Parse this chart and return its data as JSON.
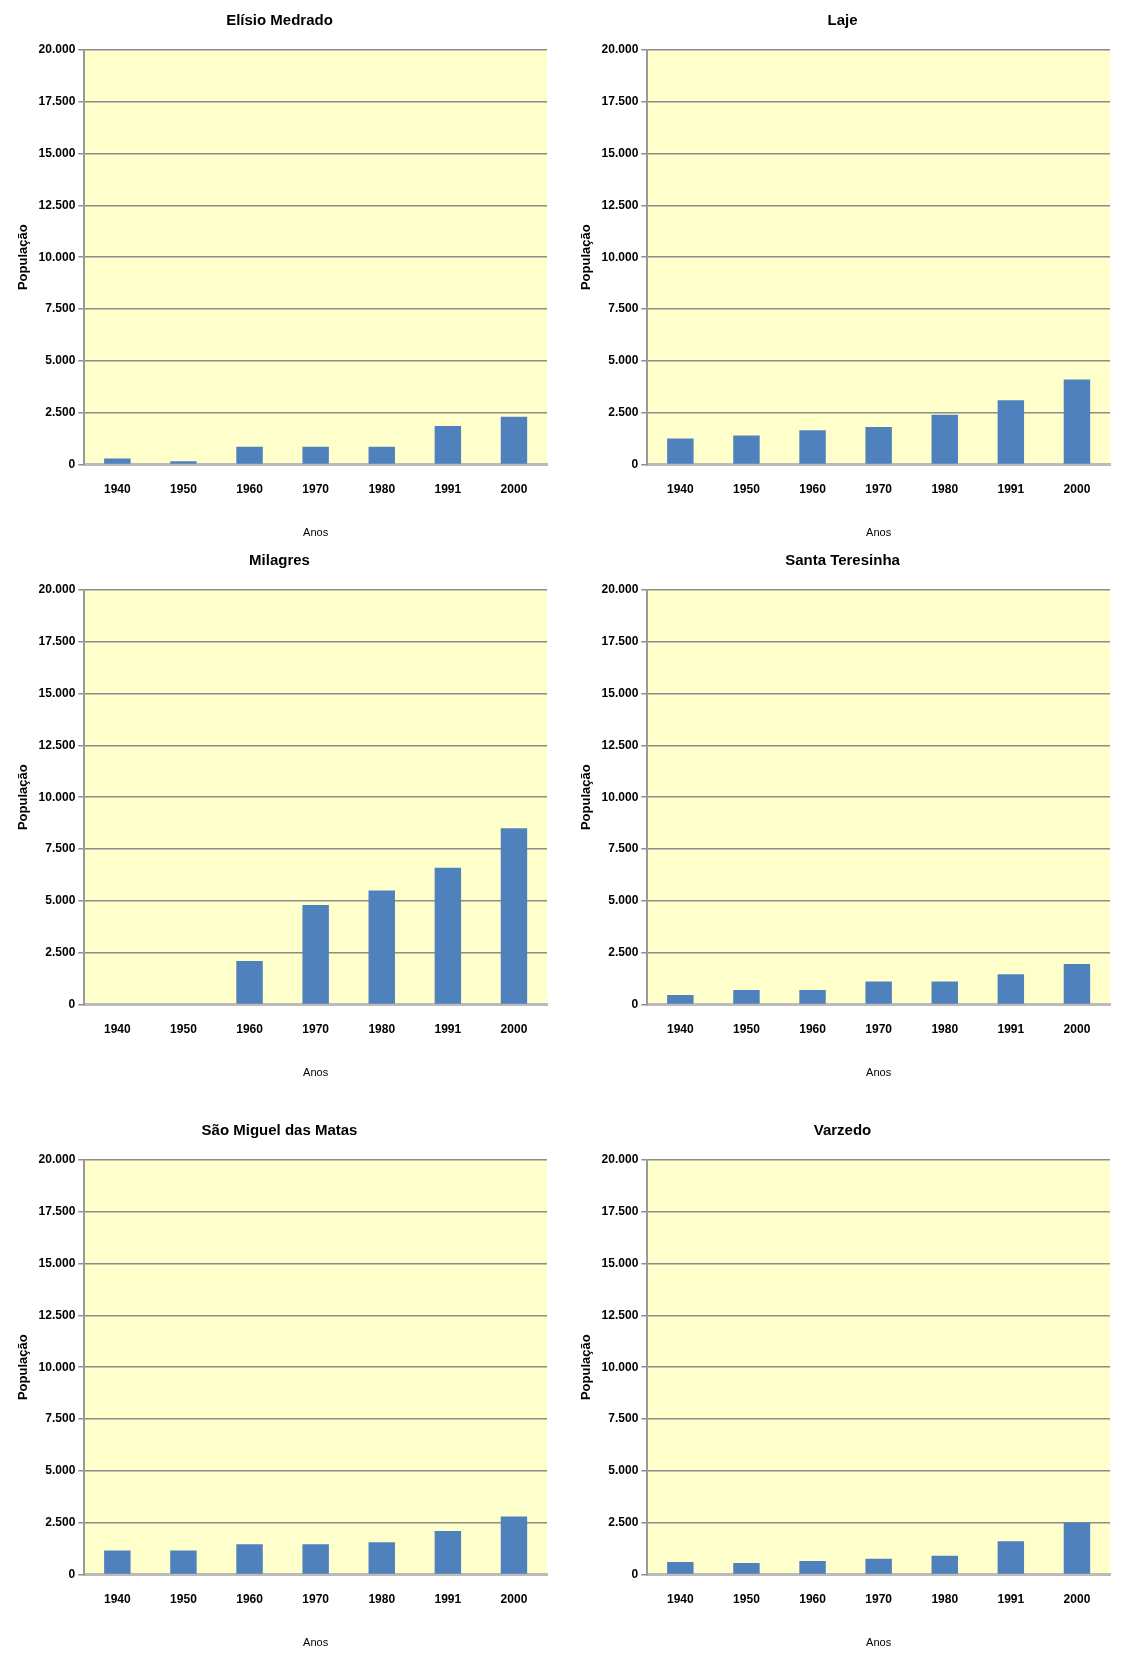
{
  "chart_data": [
    {
      "type": "bar",
      "title": "Elísio Medrado",
      "xlabel": "Anos",
      "ylabel": "População",
      "categories": [
        "1940",
        "1950",
        "1960",
        "1970",
        "1980",
        "1991",
        "2000"
      ],
      "values": [
        280,
        150,
        850,
        850,
        850,
        1850,
        2300
      ],
      "color": "#4f81bd",
      "ylim": [
        0,
        20000
      ],
      "yticks": [
        {
          "value": 0,
          "label": "0"
        },
        {
          "value": 2500,
          "label": "2.500"
        },
        {
          "value": 5000,
          "label": "5.000"
        },
        {
          "value": 7500,
          "label": "7.500"
        },
        {
          "value": 10000,
          "label": "10.000"
        },
        {
          "value": 12500,
          "label": "12.500"
        },
        {
          "value": 15000,
          "label": "15.000"
        },
        {
          "value": 17500,
          "label": "17.500"
        },
        {
          "value": 20000,
          "label": "20.000"
        }
      ],
      "grid": "y",
      "legend": false
    },
    {
      "type": "bar",
      "title": "Laje",
      "xlabel": "Anos",
      "ylabel": "População",
      "categories": [
        "1940",
        "1950",
        "1960",
        "1970",
        "1980",
        "1991",
        "2000"
      ],
      "values": [
        1250,
        1400,
        1650,
        1800,
        2400,
        3100,
        4100
      ],
      "color": "#4f81bd",
      "ylim": [
        0,
        20000
      ],
      "yticks": [
        {
          "value": 0,
          "label": "0"
        },
        {
          "value": 2500,
          "label": "2.500"
        },
        {
          "value": 5000,
          "label": "5.000"
        },
        {
          "value": 7500,
          "label": "7.500"
        },
        {
          "value": 10000,
          "label": "10.000"
        },
        {
          "value": 12500,
          "label": "12.500"
        },
        {
          "value": 15000,
          "label": "15.000"
        },
        {
          "value": 17500,
          "label": "17.500"
        },
        {
          "value": 20000,
          "label": "20.000"
        }
      ],
      "grid": "y",
      "legend": false
    },
    {
      "type": "bar",
      "title": "Milagres",
      "xlabel": "Anos",
      "ylabel": "População",
      "categories": [
        "1940",
        "1950",
        "1960",
        "1970",
        "1980",
        "1991",
        "2000"
      ],
      "values": [
        null,
        null,
        2100,
        4800,
        5500,
        6600,
        8500
      ],
      "color": "#4f81bd",
      "ylim": [
        0,
        20000
      ],
      "yticks": [
        {
          "value": 0,
          "label": "0"
        },
        {
          "value": 2500,
          "label": "2.500"
        },
        {
          "value": 5000,
          "label": "5.000"
        },
        {
          "value": 7500,
          "label": "7.500"
        },
        {
          "value": 10000,
          "label": "10.000"
        },
        {
          "value": 12500,
          "label": "12.500"
        },
        {
          "value": 15000,
          "label": "15.000"
        },
        {
          "value": 17500,
          "label": "17.500"
        },
        {
          "value": 20000,
          "label": "20.000"
        }
      ],
      "grid": "y",
      "legend": false
    },
    {
      "type": "bar",
      "title": "Santa Teresinha",
      "xlabel": "Anos",
      "ylabel": "População",
      "categories": [
        "1940",
        "1950",
        "1960",
        "1970",
        "1980",
        "1991",
        "2000"
      ],
      "values": [
        450,
        700,
        700,
        1100,
        1100,
        1450,
        1950
      ],
      "color": "#4f81bd",
      "ylim": [
        0,
        20000
      ],
      "yticks": [
        {
          "value": 0,
          "label": "0"
        },
        {
          "value": 2500,
          "label": "2.500"
        },
        {
          "value": 5000,
          "label": "5.000"
        },
        {
          "value": 7500,
          "label": "7.500"
        },
        {
          "value": 10000,
          "label": "10.000"
        },
        {
          "value": 12500,
          "label": "12.500"
        },
        {
          "value": 15000,
          "label": "15.000"
        },
        {
          "value": 17500,
          "label": "17.500"
        },
        {
          "value": 20000,
          "label": "20.000"
        }
      ],
      "grid": "y",
      "legend": false
    },
    {
      "type": "bar",
      "title": "São Miguel das Matas",
      "xlabel": "Anos",
      "ylabel": "População",
      "categories": [
        "1940",
        "1950",
        "1960",
        "1970",
        "1980",
        "1991",
        "2000"
      ],
      "values": [
        1150,
        1150,
        1450,
        1450,
        1550,
        2100,
        2800
      ],
      "color": "#4f81bd",
      "ylim": [
        0,
        20000
      ],
      "yticks": [
        {
          "value": 0,
          "label": "0"
        },
        {
          "value": 2500,
          "label": "2.500"
        },
        {
          "value": 5000,
          "label": "5.000"
        },
        {
          "value": 7500,
          "label": "7.500"
        },
        {
          "value": 10000,
          "label": "10.000"
        },
        {
          "value": 12500,
          "label": "12.500"
        },
        {
          "value": 15000,
          "label": "15.000"
        },
        {
          "value": 17500,
          "label": "17.500"
        },
        {
          "value": 20000,
          "label": "20.000"
        }
      ],
      "grid": "y",
      "legend": false
    },
    {
      "type": "bar",
      "title": "Varzedo",
      "xlabel": "Anos",
      "ylabel": "População",
      "categories": [
        "1940",
        "1950",
        "1960",
        "1970",
        "1980",
        "1991",
        "2000"
      ],
      "values": [
        600,
        550,
        650,
        750,
        900,
        1600,
        2500
      ],
      "color": "#4f81bd",
      "ylim": [
        0,
        20000
      ],
      "yticks": [
        {
          "value": 0,
          "label": "0"
        },
        {
          "value": 2500,
          "label": "2.500"
        },
        {
          "value": 5000,
          "label": "5.000"
        },
        {
          "value": 7500,
          "label": "7.500"
        },
        {
          "value": 10000,
          "label": "10.000"
        },
        {
          "value": 12500,
          "label": "12.500"
        },
        {
          "value": 15000,
          "label": "15.000"
        },
        {
          "value": 17500,
          "label": "17.500"
        },
        {
          "value": 20000,
          "label": "20.000"
        }
      ],
      "grid": "y",
      "legend": false
    }
  ]
}
